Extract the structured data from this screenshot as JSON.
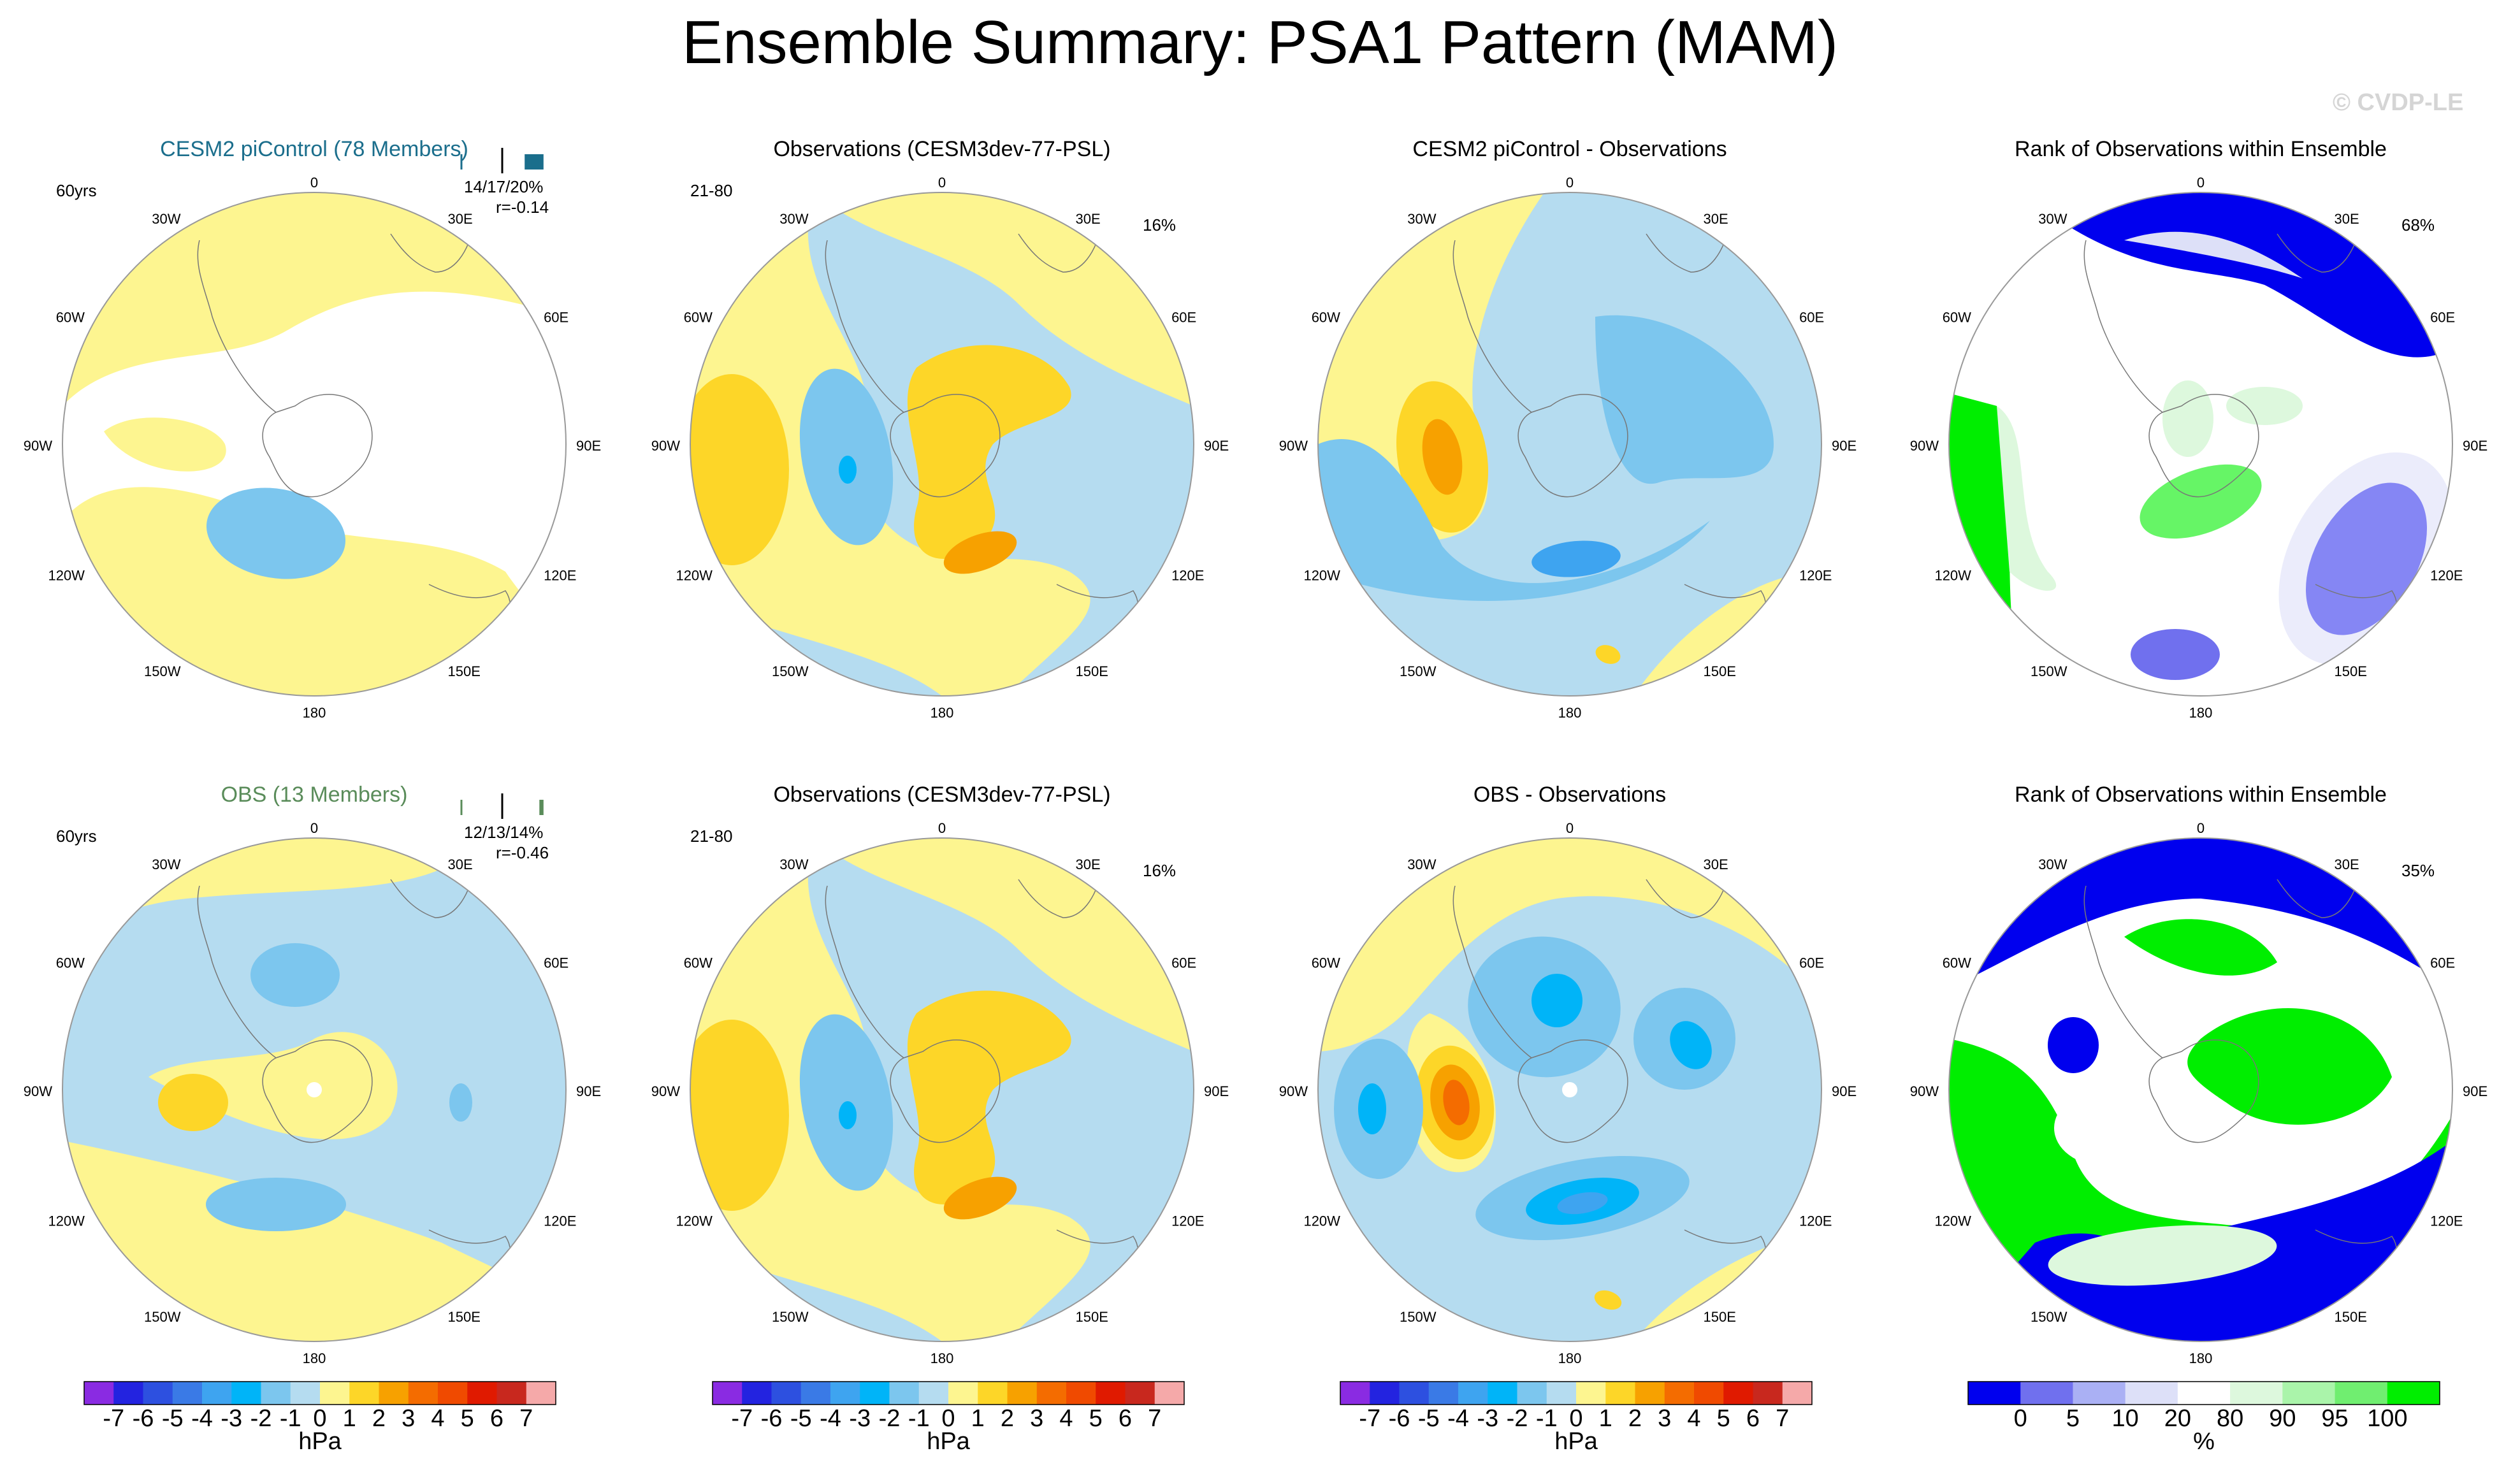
{
  "title": "Ensemble Summary: PSA1 Pattern (MAM)",
  "watermark": "© CVDP-LE",
  "colors": {
    "pale_blue": "#b5dcf0",
    "light_blue": "#7cc6ee",
    "mid_blue": "#3ea4f0",
    "cyan_blue": "#00b4f8",
    "pale_yellow": "#fdf590",
    "yellow": "#fdd628",
    "orange": "#f7a100",
    "dark_orange": "#f46c00",
    "rank_blue": "#0000ee",
    "rank_mid_blue": "#7070ee",
    "rank_light_blue": "#dde0f8",
    "rank_pale_green": "#ddf8dd",
    "rank_green": "#00ee00"
  },
  "chart_data": [
    {
      "type": "heatmap",
      "projection": "south-polar-stereographic",
      "title": "CESM2 piControl (78 Members)",
      "title_color": "#1b6e8c",
      "left_label": "60yrs",
      "stats": [
        "14/17/20%",
        "r=-0.14"
      ],
      "lon_labels": [
        "0",
        "30E",
        "60E",
        "90E",
        "120E",
        "150E",
        "180",
        "150W",
        "120W",
        "90W",
        "60W",
        "30W"
      ],
      "units": "hPa",
      "value_range": [
        -1,
        1
      ]
    },
    {
      "type": "heatmap",
      "projection": "south-polar-stereographic",
      "title": "Observations (CESM3dev-77-PSL)",
      "left_label": "21-80",
      "right_label": "16%",
      "lon_labels": [
        "0",
        "30E",
        "60E",
        "90E",
        "120E",
        "150E",
        "180",
        "150W",
        "120W",
        "90W",
        "60W",
        "30W"
      ],
      "units": "hPa",
      "value_range": [
        -3,
        3
      ]
    },
    {
      "type": "heatmap",
      "projection": "south-polar-stereographic",
      "title": "CESM2 piControl - Observations",
      "lon_labels": [
        "0",
        "30E",
        "60E",
        "90E",
        "120E",
        "150E",
        "180",
        "150W",
        "120W",
        "90W",
        "60W",
        "30W"
      ],
      "units": "hPa",
      "value_range": [
        -3,
        3
      ]
    },
    {
      "type": "heatmap",
      "projection": "south-polar-stereographic",
      "title": "Rank of Observations within Ensemble",
      "right_label": "68%",
      "lon_labels": [
        "0",
        "30E",
        "60E",
        "90E",
        "120E",
        "150E",
        "180",
        "150W",
        "120W",
        "90W",
        "60W",
        "30W"
      ],
      "units": "%",
      "value_range": [
        0,
        100
      ]
    },
    {
      "type": "heatmap",
      "projection": "south-polar-stereographic",
      "title": "OBS (13 Members)",
      "title_color": "#5a8c5a",
      "left_label": "60yrs",
      "stats": [
        "12/13/14%",
        "r=-0.46"
      ],
      "lon_labels": [
        "0",
        "30E",
        "60E",
        "90E",
        "120E",
        "150E",
        "180",
        "150W",
        "120W",
        "90W",
        "60W",
        "30W"
      ],
      "units": "hPa",
      "value_range": [
        -2,
        2
      ]
    },
    {
      "type": "heatmap",
      "projection": "south-polar-stereographic",
      "title": "Observations (CESM3dev-77-PSL)",
      "left_label": "21-80",
      "right_label": "16%",
      "lon_labels": [
        "0",
        "30E",
        "60E",
        "90E",
        "120E",
        "150E",
        "180",
        "150W",
        "120W",
        "90W",
        "60W",
        "30W"
      ],
      "units": "hPa",
      "value_range": [
        -3,
        3
      ]
    },
    {
      "type": "heatmap",
      "projection": "south-polar-stereographic",
      "title": "OBS - Observations",
      "lon_labels": [
        "0",
        "30E",
        "60E",
        "90E",
        "120E",
        "150E",
        "180",
        "150W",
        "120W",
        "90W",
        "60W",
        "30W"
      ],
      "units": "hPa",
      "value_range": [
        -4,
        4
      ]
    },
    {
      "type": "heatmap",
      "projection": "south-polar-stereographic",
      "title": "Rank of Observations within Ensemble",
      "right_label": "35%",
      "lon_labels": [
        "0",
        "30E",
        "60E",
        "90E",
        "120E",
        "150E",
        "180",
        "150W",
        "120W",
        "90W",
        "60W",
        "30W"
      ],
      "units": "%",
      "value_range": [
        0,
        100
      ]
    }
  ],
  "colorbars": {
    "hpa": {
      "labels": [
        "-7",
        "-6",
        "-5",
        "-4",
        "-3",
        "-2",
        "-1",
        "0",
        "1",
        "2",
        "3",
        "4",
        "5",
        "6",
        "7"
      ],
      "unit": "hPa",
      "colors": [
        "#8a2be2",
        "#2323e0",
        "#2d50e0",
        "#3a7ae6",
        "#3ea4f0",
        "#00b4f8",
        "#7cc6ee",
        "#b5dcf0",
        "#fdf590",
        "#fdd628",
        "#f7a100",
        "#f46c00",
        "#f04a00",
        "#e01a00",
        "#c8281e",
        "#f5a9a9"
      ]
    },
    "rank": {
      "labels": [
        "0",
        "5",
        "10",
        "20",
        "80",
        "90",
        "95",
        "100"
      ],
      "unit": "%",
      "colors": [
        "#0000ee",
        "#7070ee",
        "#aab0f4",
        "#dde0f8",
        "#ffffff",
        "#ddf8dd",
        "#aaf4aa",
        "#70ee70",
        "#00ee00"
      ]
    }
  }
}
